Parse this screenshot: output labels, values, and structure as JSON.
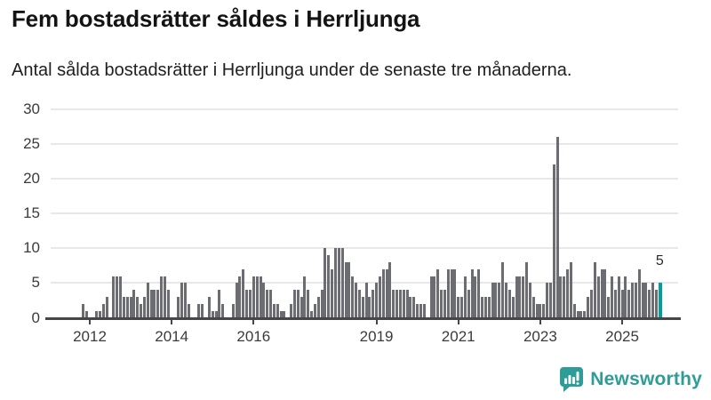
{
  "header": {
    "title": "Fem bostadsrätter såldes i Herrljunga",
    "subtitle": "Antal sålda bostadsrätter i Herrljunga under de senaste tre månaderna."
  },
  "colors": {
    "bar": "#6c6c73",
    "highlight": "#00a09b",
    "gridline": "#e8e8e8",
    "axis": "#46464a",
    "text": "#3b3b3b",
    "logo": "#2e9d97"
  },
  "chart_data": {
    "type": "bar",
    "title": "Fem bostadsrätter såldes i Herrljunga",
    "subtitle": "Antal sålda bostadsrätter i Herrljunga under de senaste tre månaderna.",
    "xlabel": "",
    "ylabel": "",
    "ylim": [
      0,
      30
    ],
    "yticks": [
      0,
      5,
      10,
      15,
      20,
      25,
      30
    ],
    "grid": "horizontal",
    "x_start_month": "2011-01",
    "x_freq": "monthly",
    "xticks": [
      {
        "label": "2012",
        "month_index": 12
      },
      {
        "label": "2014",
        "month_index": 36
      },
      {
        "label": "2016",
        "month_index": 60
      },
      {
        "label": "2019",
        "month_index": 96
      },
      {
        "label": "2021",
        "month_index": 120
      },
      {
        "label": "2023",
        "month_index": 144
      },
      {
        "label": "2025",
        "month_index": 168
      }
    ],
    "values": [
      0,
      0,
      0,
      0,
      0,
      0,
      0,
      0,
      0,
      0,
      2,
      1,
      0,
      0,
      1,
      1,
      2,
      3,
      0,
      6,
      6,
      6,
      3,
      3,
      3,
      4,
      3,
      2,
      3,
      5,
      4,
      4,
      4,
      6,
      6,
      4,
      0,
      0,
      3,
      5,
      5,
      2,
      0,
      0,
      2,
      2,
      0,
      3,
      1,
      1,
      4,
      2,
      0,
      0,
      2,
      5,
      6,
      7,
      4,
      4,
      6,
      6,
      6,
      5,
      4,
      4,
      2,
      2,
      1,
      1,
      0,
      2,
      4,
      4,
      3,
      6,
      4,
      1,
      2,
      3,
      4,
      10,
      9,
      7,
      10,
      10,
      10,
      8,
      8,
      6,
      5,
      4,
      3,
      5,
      3,
      4,
      5,
      6,
      7,
      7,
      8,
      4,
      4,
      4,
      4,
      4,
      3,
      3,
      2,
      2,
      2,
      0,
      6,
      6,
      7,
      4,
      4,
      7,
      7,
      7,
      3,
      3,
      6,
      4,
      7,
      6,
      7,
      3,
      3,
      3,
      5,
      5,
      5,
      8,
      5,
      4,
      3,
      6,
      6,
      6,
      8,
      5,
      3,
      2,
      2,
      2,
      5,
      5,
      22,
      26,
      6,
      6,
      7,
      8,
      2,
      1,
      1,
      1,
      3,
      4,
      8,
      6,
      7,
      7,
      3,
      6,
      4,
      6,
      4,
      6,
      4,
      5,
      5,
      7,
      5,
      5,
      4,
      5,
      4,
      5
    ],
    "highlight": {
      "index": 179,
      "value": 5,
      "label": "5",
      "meaning": "senaste tre månaderna"
    }
  },
  "footer": {
    "logo_text": "Newsworthy"
  }
}
